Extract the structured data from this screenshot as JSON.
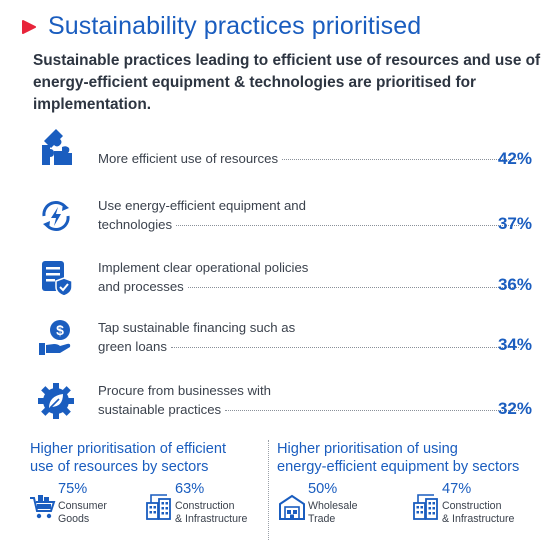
{
  "title": "Sustainability practices prioritised",
  "intro": "Sustainable practices leading to efficient use of resources and use of energy-efficient equipment & technologies are prioritised for implementation.",
  "colors": {
    "accent": "#1a5dbf",
    "marker": "#e8243a",
    "text": "#333a44"
  },
  "practices": [
    {
      "icon": "puzzle-icon",
      "line1": "",
      "line2": "More efficient use of resources",
      "percent": "42%"
    },
    {
      "icon": "energy-cycle-icon",
      "line1": "Use energy-efficient equipment and",
      "line2": "technologies",
      "percent": "37%"
    },
    {
      "icon": "policy-document-icon",
      "line1": "Implement clear operational policies",
      "line2": "and processes",
      "percent": "36%"
    },
    {
      "icon": "financing-hand-icon",
      "line1": "Tap sustainable financing such as",
      "line2": "green loans",
      "percent": "34%"
    },
    {
      "icon": "eco-gear-icon",
      "line1": "Procure from businesses with",
      "line2": "sustainable practices",
      "percent": "32%"
    }
  ],
  "sectors_left": {
    "heading_line1": "Higher prioritisation of efficient",
    "heading_line2": "use of resources by sectors",
    "items": [
      {
        "icon": "shopping-cart-icon",
        "percent": "75%",
        "name_line1": "Consumer",
        "name_line2": "Goods"
      },
      {
        "icon": "construction-icon",
        "percent": "63%",
        "name_line1": "Construction",
        "name_line2": "& Infrastructure"
      }
    ]
  },
  "sectors_right": {
    "heading_line1": "Higher prioritisation of using",
    "heading_line2": "energy-efficient equipment by sectors",
    "items": [
      {
        "icon": "warehouse-icon",
        "percent": "50%",
        "name_line1": "Wholesale",
        "name_line2": "Trade"
      },
      {
        "icon": "construction-icon",
        "percent": "47%",
        "name_line1": "Construction",
        "name_line2": "& Infrastructure"
      }
    ]
  }
}
